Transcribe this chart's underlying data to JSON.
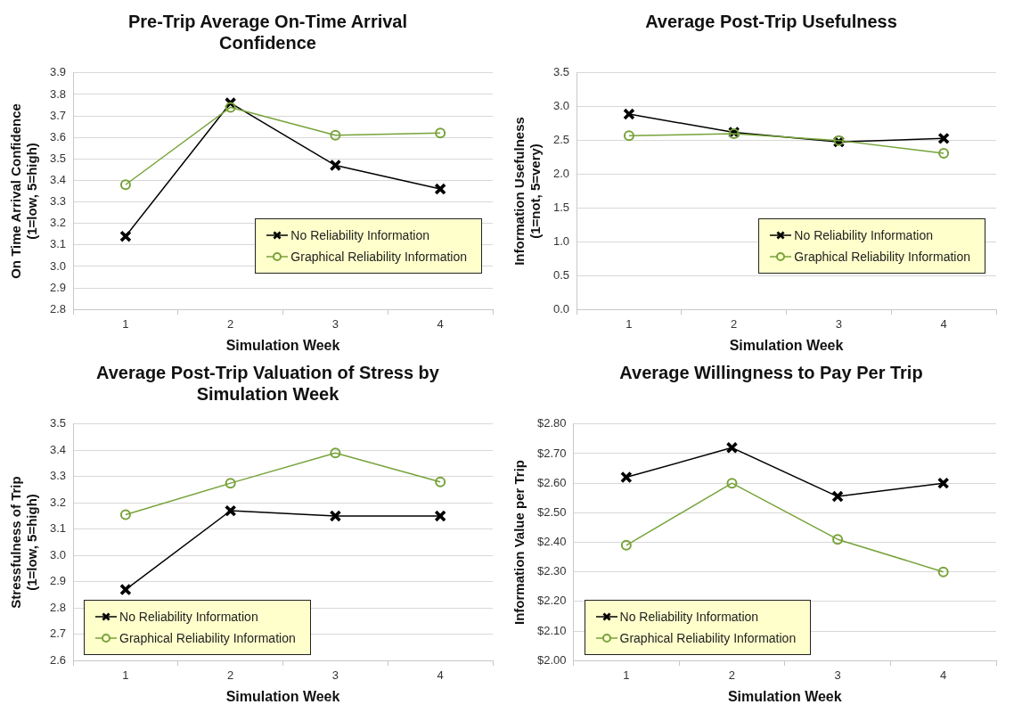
{
  "chart_data": [
    {
      "type": "line",
      "title": "Pre-Trip Average On-Time Arrival Confidence",
      "xlabel": "Simulation Week",
      "ylabel": "On Time Arrival Confidence (1=low, 5=high)",
      "categories": [
        "1",
        "2",
        "3",
        "4"
      ],
      "ylim": [
        2.8,
        3.9
      ],
      "yticks": [
        {
          "value": 2.8,
          "label": "2.8"
        },
        {
          "value": 2.9,
          "label": "2.9"
        },
        {
          "value": 3.0,
          "label": "3.0"
        },
        {
          "value": 3.1,
          "label": "3.1"
        },
        {
          "value": 3.2,
          "label": "3.2"
        },
        {
          "value": 3.3,
          "label": "3.3"
        },
        {
          "value": 3.4,
          "label": "3.4"
        },
        {
          "value": 3.5,
          "label": "3.5"
        },
        {
          "value": 3.6,
          "label": "3.6"
        },
        {
          "value": 3.7,
          "label": "3.7"
        },
        {
          "value": 3.8,
          "label": "3.8"
        },
        {
          "value": 3.9,
          "label": "3.9"
        }
      ],
      "grid": "y",
      "legend": "bottom right",
      "series": [
        {
          "name": "No Reliability Information",
          "color": "#000000",
          "marker": "cross",
          "values": [
            3.14,
            3.76,
            3.47,
            3.36
          ]
        },
        {
          "name": "Graphical Reliability Information",
          "color": "#77a33a",
          "marker": "circle",
          "values": [
            3.38,
            3.74,
            3.61,
            3.62
          ]
        }
      ]
    },
    {
      "type": "line",
      "title": "Average Post-Trip Usefulness",
      "xlabel": "Simulation Week",
      "ylabel": "Information Usefulness (1=not, 5=very)",
      "categories": [
        "1",
        "2",
        "3",
        "4"
      ],
      "ylim": [
        0,
        3.5
      ],
      "yticks": [
        {
          "value": 0,
          "label": "0.0"
        },
        {
          "value": 0.5,
          "label": "0.5"
        },
        {
          "value": 1,
          "label": "1.0"
        },
        {
          "value": 1.5,
          "label": "1.5"
        },
        {
          "value": 2,
          "label": "2.0"
        },
        {
          "value": 2.5,
          "label": "2.5"
        },
        {
          "value": 3,
          "label": "3.0"
        },
        {
          "value": 3.5,
          "label": "3.5"
        }
      ],
      "grid": "y",
      "legend": "bottom right",
      "series": [
        {
          "name": "No Reliability Information",
          "color": "#000000",
          "marker": "cross",
          "values": [
            2.89,
            2.62,
            2.48,
            2.53
          ]
        },
        {
          "name": "Graphical Reliability Information",
          "color": "#77a33a",
          "marker": "circle",
          "values": [
            2.57,
            2.6,
            2.5,
            2.31
          ]
        }
      ]
    },
    {
      "type": "line",
      "title": "Average Post-Trip Valuation of Stress by Simulation Week",
      "xlabel": "Simulation Week",
      "ylabel": "Stressfulness of Trip (1=low, 5=high)",
      "categories": [
        "1",
        "2",
        "3",
        "4"
      ],
      "ylim": [
        2.6,
        3.5
      ],
      "yticks": [
        {
          "value": 2.6,
          "label": "2.6"
        },
        {
          "value": 2.7,
          "label": "2.7"
        },
        {
          "value": 2.8,
          "label": "2.8"
        },
        {
          "value": 2.9,
          "label": "2.9"
        },
        {
          "value": 3.0,
          "label": "3.0"
        },
        {
          "value": 3.1,
          "label": "3.1"
        },
        {
          "value": 3.2,
          "label": "3.2"
        },
        {
          "value": 3.3,
          "label": "3.3"
        },
        {
          "value": 3.4,
          "label": "3.4"
        },
        {
          "value": 3.5,
          "label": "3.5"
        }
      ],
      "grid": "y",
      "legend": "bottom left",
      "series": [
        {
          "name": "No Reliability Information",
          "color": "#000000",
          "marker": "cross",
          "values": [
            2.87,
            3.17,
            3.15,
            3.15
          ]
        },
        {
          "name": "Graphical Reliability Information",
          "color": "#77a33a",
          "marker": "circle",
          "values": [
            3.155,
            3.275,
            3.39,
            3.28
          ]
        }
      ]
    },
    {
      "type": "line",
      "title": "Average Willingness to Pay Per Trip",
      "xlabel": "Simulation Week",
      "ylabel": "Information Value per Trip",
      "categories": [
        "1",
        "2",
        "3",
        "4"
      ],
      "ylim": [
        2.0,
        2.8
      ],
      "yticks": [
        {
          "value": 2.0,
          "label": "$2.00"
        },
        {
          "value": 2.1,
          "label": "$2.10"
        },
        {
          "value": 2.2,
          "label": "$2.20"
        },
        {
          "value": 2.3,
          "label": "$2.30"
        },
        {
          "value": 2.4,
          "label": "$2.40"
        },
        {
          "value": 2.5,
          "label": "$2.50"
        },
        {
          "value": 2.6,
          "label": "$2.60"
        },
        {
          "value": 2.7,
          "label": "$2.70"
        },
        {
          "value": 2.8,
          "label": "$2.80"
        }
      ],
      "grid": "y",
      "legend": "bottom left",
      "series": [
        {
          "name": "No Reliability Information",
          "color": "#000000",
          "marker": "cross",
          "values": [
            2.62,
            2.72,
            2.555,
            2.6
          ]
        },
        {
          "name": "Graphical Reliability Information",
          "color": "#77a33a",
          "marker": "circle",
          "values": [
            2.39,
            2.6,
            2.41,
            2.3
          ]
        }
      ]
    }
  ]
}
